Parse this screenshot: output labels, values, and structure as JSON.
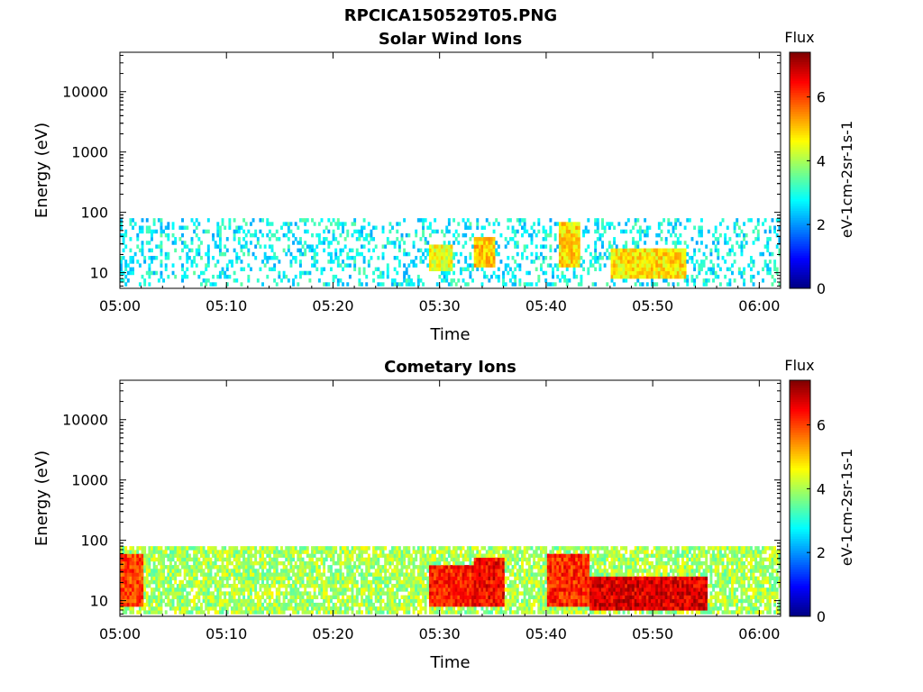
{
  "figure": {
    "title": "RPCICA150529T05.PNG"
  },
  "colors": {
    "axis": "#000000",
    "background": "#ffffff",
    "colormap": [
      "#00007f",
      "#0000ff",
      "#007fff",
      "#00ffff",
      "#7fff7f",
      "#ffff00",
      "#ff7f00",
      "#ff0000",
      "#7f0000"
    ]
  },
  "chart_data": [
    {
      "type": "heatmap",
      "title": "Solar Wind Ions",
      "xlabel": "Time",
      "ylabel": "Energy (eV)",
      "y_scale": "log",
      "ylim": [
        5.5,
        45000
      ],
      "x_range": [
        "05:00",
        "06:02"
      ],
      "x_ticks": [
        "05:00",
        "05:10",
        "05:20",
        "05:30",
        "05:40",
        "05:50",
        "06:00"
      ],
      "y_ticks": [
        "10",
        "100",
        "1000",
        "10000"
      ],
      "colorbar": {
        "label": "Flux",
        "units": "eV-1cm-2sr-1s-1",
        "range": [
          0,
          7.4
        ],
        "ticks": [
          "0",
          "2",
          "4",
          "6"
        ]
      },
      "signal": {
        "energy_range_ev": [
          6,
          80
        ],
        "background_flux": 2.8,
        "events": [
          {
            "t_start": "05:29",
            "t_end": "05:31",
            "flux": 4.5,
            "energy_ev": [
              10,
              30
            ]
          },
          {
            "t_start": "05:33",
            "t_end": "05:35",
            "flux": 5.0,
            "energy_ev": [
              12,
              40
            ]
          },
          {
            "t_start": "05:41",
            "t_end": "05:43",
            "flux": 4.8,
            "energy_ev": [
              12,
              70
            ]
          },
          {
            "t_start": "05:46",
            "t_end": "05:53",
            "flux": 4.8,
            "energy_ev": [
              8,
              25
            ]
          }
        ]
      }
    },
    {
      "type": "heatmap",
      "title": "Cometary Ions",
      "xlabel": "Time",
      "ylabel": "Energy (eV)",
      "y_scale": "log",
      "ylim": [
        5.5,
        45000
      ],
      "x_range": [
        "05:00",
        "06:02"
      ],
      "x_ticks": [
        "05:00",
        "05:10",
        "05:20",
        "05:30",
        "05:40",
        "05:50",
        "06:00"
      ],
      "y_ticks": [
        "10",
        "100",
        "1000",
        "10000"
      ],
      "colorbar": {
        "label": "Flux",
        "units": "eV-1cm-2sr-1s-1",
        "range": [
          0,
          7.4
        ],
        "ticks": [
          "0",
          "2",
          "4",
          "6"
        ]
      },
      "signal": {
        "energy_range_ev": [
          6,
          80
        ],
        "background_flux": 4.0,
        "events": [
          {
            "t_start": "05:00",
            "t_end": "05:02",
            "flux": 6.0,
            "energy_ev": [
              8,
              60
            ]
          },
          {
            "t_start": "05:29",
            "t_end": "05:33",
            "flux": 6.3,
            "energy_ev": [
              8,
              40
            ]
          },
          {
            "t_start": "05:33",
            "t_end": "05:36",
            "flux": 6.5,
            "energy_ev": [
              8,
              50
            ]
          },
          {
            "t_start": "05:40",
            "t_end": "05:44",
            "flux": 6.2,
            "energy_ev": [
              8,
              60
            ]
          },
          {
            "t_start": "05:44",
            "t_end": "05:55",
            "flux": 6.7,
            "energy_ev": [
              7,
              25
            ]
          }
        ]
      }
    }
  ]
}
